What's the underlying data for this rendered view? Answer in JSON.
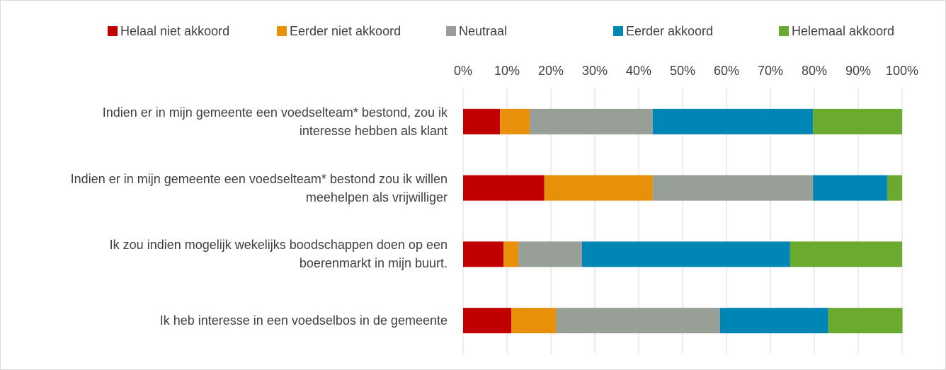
{
  "chart_data": {
    "type": "stacked_bar_horizontal",
    "categories": [
      "Indien er in mijn gemeente een voedselteam* bestond, zou ik interesse hebben als klant",
      "Indien er in mijn gemeente een voedselteam* bestond zou ik willen meehelpen als vrijwilliger",
      "Ik zou indien mogelijk wekelijks boodschappen doen op een boerenmarkt in mijn buurt.",
      "Ik heb interesse in een voedselbos in de gemeente"
    ],
    "series": [
      {
        "name": "Helaal niet akkoord",
        "color": "#c00000",
        "values": [
          8.4,
          18.5,
          9.2,
          11
        ]
      },
      {
        "name": "Eerder niet akkoord",
        "color": "#e8900a",
        "values": [
          6.8,
          24.7,
          3.4,
          10.2
        ]
      },
      {
        "name": "Neutraal",
        "color": "#979f97",
        "values": [
          28,
          36.5,
          14.5,
          37.3
        ]
      },
      {
        "name": "Eerder akkoord",
        "color": "#0086b4",
        "values": [
          36.5,
          16.9,
          47.4,
          24.7
        ]
      },
      {
        "name": "Helemaal akkoord",
        "color": "#6aaa2f",
        "values": [
          20.3,
          3.4,
          25.5,
          16.9
        ]
      }
    ],
    "xlim": [
      0,
      100
    ],
    "xticks": [
      {
        "value": 0,
        "label": "0%"
      },
      {
        "value": 10,
        "label": "10%"
      },
      {
        "value": 20,
        "label": "20%"
      },
      {
        "value": 30,
        "label": "30%"
      },
      {
        "value": 40,
        "label": "40%"
      },
      {
        "value": 50,
        "label": "50%"
      },
      {
        "value": 60,
        "label": "60%"
      },
      {
        "value": 70,
        "label": "70%"
      },
      {
        "value": 80,
        "label": "80%"
      },
      {
        "value": 90,
        "label": "90%"
      },
      {
        "value": 100,
        "label": "100%"
      }
    ],
    "grid": true,
    "legend": "top"
  }
}
